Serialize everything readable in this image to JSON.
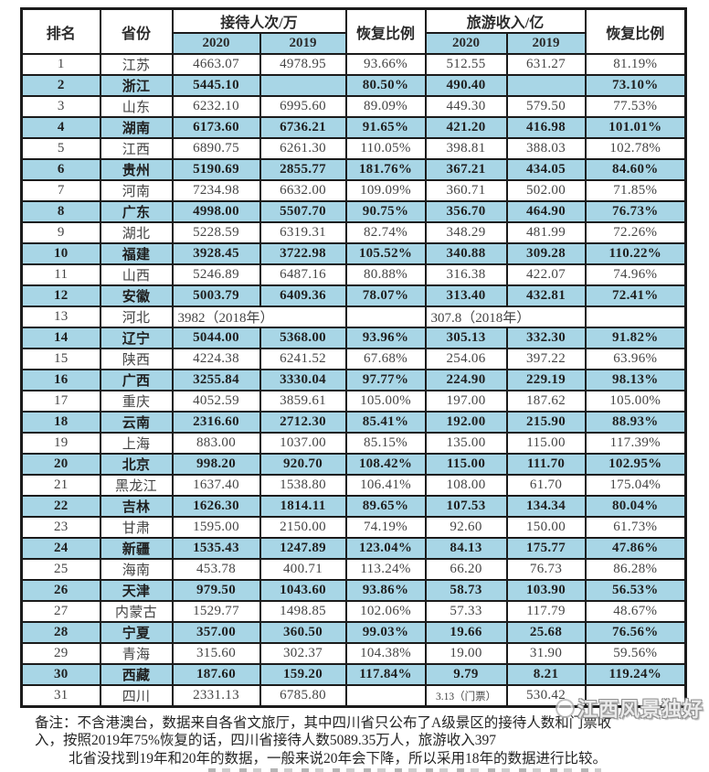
{
  "colors": {
    "highlight": "#a8d6e6",
    "border": "#1b1b1b",
    "text": "#444444"
  },
  "table": {
    "header": {
      "rank": "排名",
      "province": "省份",
      "visitors_group": "接待人次/万",
      "revenue_group": "旅游收入/亿",
      "recovery_visitors": "恢复比例",
      "recovery_revenue": "恢复比例",
      "y2020": "2020",
      "y2019": "2019"
    },
    "rows": [
      {
        "rank": "1",
        "province": "江苏",
        "v2020": "4663.07",
        "v2019": "4978.95",
        "vrec": "93.66%",
        "r2020": "512.55",
        "r2019": "631.27",
        "rrec": "81.19%",
        "hl": false
      },
      {
        "rank": "2",
        "province": "浙江",
        "v2020": "5445.10",
        "v2019": "",
        "vrec": "80.50%",
        "r2020": "490.40",
        "r2019": "",
        "rrec": "73.10%",
        "hl": true
      },
      {
        "rank": "3",
        "province": "山东",
        "v2020": "6232.10",
        "v2019": "6995.60",
        "vrec": "89.09%",
        "r2020": "449.30",
        "r2019": "579.50",
        "rrec": "77.53%",
        "hl": false
      },
      {
        "rank": "4",
        "province": "湖南",
        "v2020": "6173.60",
        "v2019": "6736.21",
        "vrec": "91.65%",
        "r2020": "421.20",
        "r2019": "416.98",
        "rrec": "101.01%",
        "hl": true
      },
      {
        "rank": "5",
        "province": "江西",
        "v2020": "6890.75",
        "v2019": "6261.30",
        "vrec": "110.05%",
        "r2020": "398.81",
        "r2019": "388.03",
        "rrec": "102.78%",
        "hl": false
      },
      {
        "rank": "6",
        "province": "贵州",
        "v2020": "5190.69",
        "v2019": "2855.77",
        "vrec": "181.76%",
        "r2020": "367.21",
        "r2019": "434.05",
        "rrec": "84.60%",
        "hl": true
      },
      {
        "rank": "7",
        "province": "河南",
        "v2020": "7234.98",
        "v2019": "6632.00",
        "vrec": "109.09%",
        "r2020": "360.71",
        "r2019": "502.00",
        "rrec": "71.85%",
        "hl": false
      },
      {
        "rank": "8",
        "province": "广东",
        "v2020": "4998.00",
        "v2019": "5507.70",
        "vrec": "90.75%",
        "r2020": "356.70",
        "r2019": "464.90",
        "rrec": "76.73%",
        "hl": true
      },
      {
        "rank": "9",
        "province": "湖北",
        "v2020": "5228.59",
        "v2019": "6319.31",
        "vrec": "82.74%",
        "r2020": "348.29",
        "r2019": "481.99",
        "rrec": "72.26%",
        "hl": false
      },
      {
        "rank": "10",
        "province": "福建",
        "v2020": "3928.45",
        "v2019": "3722.98",
        "vrec": "105.52%",
        "r2020": "340.88",
        "r2019": "309.28",
        "rrec": "110.22%",
        "hl": true
      },
      {
        "rank": "11",
        "province": "山西",
        "v2020": "5246.89",
        "v2019": "6487.16",
        "vrec": "80.88%",
        "r2020": "316.38",
        "r2019": "422.07",
        "rrec": "74.96%",
        "hl": false
      },
      {
        "rank": "12",
        "province": "安徽",
        "v2020": "5003.79",
        "v2019": "6409.36",
        "vrec": "78.07%",
        "r2020": "313.40",
        "r2019": "432.81",
        "rrec": "72.41%",
        "hl": true,
        "w2019": true
      },
      {
        "rank": "13",
        "province": "河北",
        "merged": true,
        "v_span": "3982（2018年）",
        "vrec": "",
        "r_span": "307.8（2018年）",
        "rrec": "",
        "hl": false
      },
      {
        "rank": "14",
        "province": "辽宁",
        "v2020": "5044.00",
        "v2019": "5368.00",
        "vrec": "93.96%",
        "r2020": "305.13",
        "r2019": "332.30",
        "rrec": "91.82%",
        "hl": true
      },
      {
        "rank": "15",
        "province": "陕西",
        "v2020": "4224.38",
        "v2019": "6241.52",
        "vrec": "67.68%",
        "r2020": "254.06",
        "r2019": "397.22",
        "rrec": "63.96%",
        "hl": false
      },
      {
        "rank": "16",
        "province": "广西",
        "v2020": "3255.84",
        "v2019": "3330.04",
        "vrec": "97.77%",
        "r2020": "224.90",
        "r2019": "229.19",
        "rrec": "98.13%",
        "hl": true
      },
      {
        "rank": "17",
        "province": "重庆",
        "v2020": "4052.59",
        "v2019": "3859.61",
        "vrec": "105.00%",
        "r2020": "197.00",
        "r2019": "187.62",
        "rrec": "105.00%",
        "hl": false
      },
      {
        "rank": "18",
        "province": "云南",
        "v2020": "2316.60",
        "v2019": "2712.30",
        "vrec": "85.41%",
        "r2020": "192.00",
        "r2019": "215.90",
        "rrec": "88.93%",
        "hl": true
      },
      {
        "rank": "19",
        "province": "上海",
        "v2020": "883.00",
        "v2019": "1037.00",
        "vrec": "85.15%",
        "r2020": "135.00",
        "r2019": "115.00",
        "rrec": "117.39%",
        "hl": false
      },
      {
        "rank": "20",
        "province": "北京",
        "v2020": "998.20",
        "v2019": "920.70",
        "vrec": "108.42%",
        "r2020": "115.00",
        "r2019": "111.70",
        "rrec": "102.95%",
        "hl": true
      },
      {
        "rank": "21",
        "province": "黑龙江",
        "v2020": "1637.40",
        "v2019": "1538.80",
        "vrec": "106.41%",
        "r2020": "108.00",
        "r2019": "61.70",
        "rrec": "175.04%",
        "hl": false
      },
      {
        "rank": "22",
        "province": "吉林",
        "v2020": "1626.30",
        "v2019": "1814.11",
        "vrec": "89.65%",
        "r2020": "107.53",
        "r2019": "134.34",
        "rrec": "80.04%",
        "hl": true
      },
      {
        "rank": "23",
        "province": "甘肃",
        "v2020": "1595.00",
        "v2019": "2150.00",
        "vrec": "74.19%",
        "r2020": "92.60",
        "r2019": "150.00",
        "rrec": "61.73%",
        "hl": false
      },
      {
        "rank": "24",
        "province": "新疆",
        "v2020": "1535.43",
        "v2019": "1247.89",
        "vrec": "123.04%",
        "r2020": "84.13",
        "r2019": "175.77",
        "rrec": "47.86%",
        "hl": true
      },
      {
        "rank": "25",
        "province": "海南",
        "v2020": "453.78",
        "v2019": "400.71",
        "vrec": "113.24%",
        "r2020": "66.20",
        "r2019": "76.73",
        "rrec": "86.28%",
        "hl": false
      },
      {
        "rank": "26",
        "province": "天津",
        "v2020": "979.50",
        "v2019": "1043.60",
        "vrec": "93.86%",
        "r2020": "58.73",
        "r2019": "103.90",
        "rrec": "56.53%",
        "hl": true
      },
      {
        "rank": "27",
        "province": "内蒙古",
        "v2020": "1529.77",
        "v2019": "1498.85",
        "vrec": "102.06%",
        "r2020": "57.33",
        "r2019": "117.79",
        "rrec": "48.67%",
        "hl": false
      },
      {
        "rank": "28",
        "province": "宁夏",
        "v2020": "357.00",
        "v2019": "360.50",
        "vrec": "99.03%",
        "r2020": "19.66",
        "r2019": "25.68",
        "rrec": "76.56%",
        "hl": true,
        "w2019": true
      },
      {
        "rank": "29",
        "province": "青海",
        "v2020": "315.60",
        "v2019": "302.37",
        "vrec": "104.38%",
        "r2020": "19.00",
        "r2019": "31.90",
        "rrec": "59.56%",
        "hl": false
      },
      {
        "rank": "30",
        "province": "西藏",
        "v2020": "187.60",
        "v2019": "159.20",
        "vrec": "117.84%",
        "r2020": "9.79",
        "r2019": "8.21",
        "rrec": "119.24%",
        "hl": true
      },
      {
        "rank": "31",
        "province": "四川",
        "v2020": "2331.13",
        "v2019": "6785.80",
        "vrec": "",
        "r2020": "3.13（门票）",
        "r2019": "530.42",
        "rrec": "",
        "hl": false,
        "sm2020": true
      }
    ]
  },
  "notes": {
    "line1": "备注：不含港澳台，数据来自各省文旅厅，其中四川省只公布了A级景区的接待人数和门票收",
    "line2": "入，按照2019年75%恢复的话，四川省接待人数5089.35万人，旅游收入397",
    "line3": "北省没找到19年和20年的数据，一般来说20年会下降，所以采用18年的数据进行比较。"
  },
  "watermark": {
    "text": "江西风景独好"
  }
}
